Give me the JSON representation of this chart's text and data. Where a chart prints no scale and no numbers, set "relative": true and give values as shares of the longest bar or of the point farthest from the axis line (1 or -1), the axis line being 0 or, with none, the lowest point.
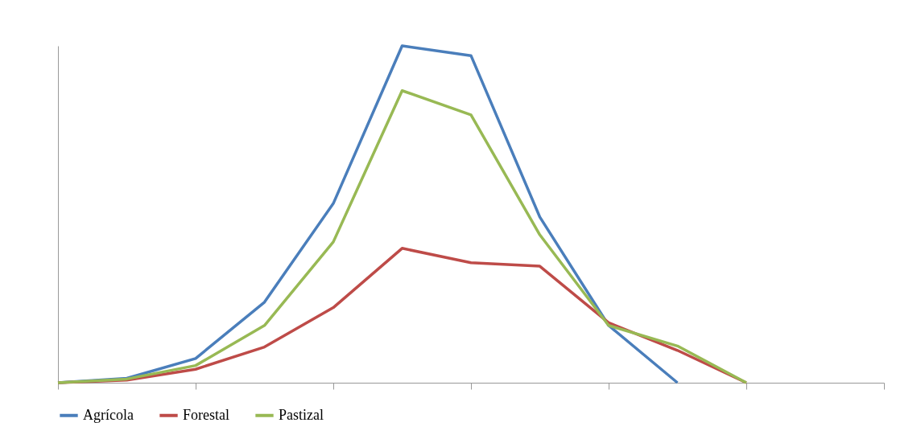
{
  "chart_data": {
    "type": "line",
    "relative": true,
    "categories": [
      null,
      null,
      null,
      null,
      null,
      null,
      null,
      null,
      null,
      null,
      null,
      null,
      null
    ],
    "series": [
      {
        "name": "Agrícola",
        "color": "#4a7ebb",
        "values": [
          0,
          0.013,
          0.072,
          0.239,
          0.532,
          1,
          0.971,
          0.492,
          0.17,
          0,
          null,
          null,
          null
        ]
      },
      {
        "name": "Forestal",
        "color": "#be4b48",
        "values": [
          0,
          0.008,
          0.04,
          0.106,
          0.223,
          0.399,
          0.356,
          0.346,
          0.178,
          0.096,
          0,
          null,
          null
        ]
      },
      {
        "name": "Pastizal",
        "color": "#98b954",
        "values": [
          0,
          0.011,
          0.051,
          0.17,
          0.418,
          0.867,
          0.795,
          0.439,
          0.17,
          0.109,
          0,
          null,
          null
        ]
      }
    ],
    "legend": "bottom",
    "grid": false,
    "marker": "none",
    "line_style": "solid",
    "tick_labels": false
  }
}
